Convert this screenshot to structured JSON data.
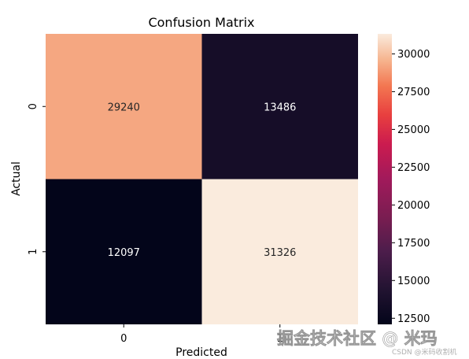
{
  "chart_data": {
    "type": "heatmap",
    "title": "Confusion Matrix",
    "xlabel": "Predicted",
    "ylabel": "Actual",
    "x_tick_labels": [
      "0",
      "1"
    ],
    "y_tick_labels": [
      "0",
      "1"
    ],
    "matrix": [
      [
        29240,
        13486
      ],
      [
        12097,
        31326
      ]
    ],
    "value_labels": [
      [
        "29240",
        "13486"
      ],
      [
        "12097",
        "31326"
      ]
    ],
    "colormap": "rocket",
    "colorbar": {
      "min": 12097,
      "max": 31326,
      "ticks": [
        12500,
        15000,
        17500,
        20000,
        22500,
        25000,
        27500,
        30000
      ],
      "tick_labels": [
        "12500",
        "15000",
        "17500",
        "20000",
        "22500",
        "25000",
        "27500",
        "30000"
      ]
    },
    "colors": {
      "low": "#03051a",
      "high": "#faebdd",
      "dark_text": "#262626"
    }
  },
  "watermark": {
    "main": "掘金技术社区 @ 米玛",
    "sub": "CSDN @米码收割机"
  }
}
